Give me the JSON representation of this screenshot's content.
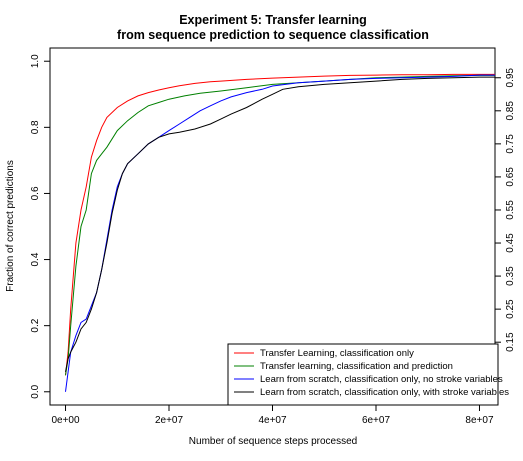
{
  "chart_data": {
    "type": "line",
    "title_line1": "Experiment 5: Transfer learning",
    "title_line2": "from sequence prediction to sequence classification",
    "xlabel": "Number of sequence steps processed",
    "ylabel": "Fraction of correct predictions",
    "xlim": [
      -3000000,
      83000000
    ],
    "ylim": [
      -0.04,
      1.04
    ],
    "grid": false,
    "legend_position": "bottom-right",
    "x_ticks": [
      0,
      20000000,
      40000000,
      60000000,
      80000000
    ],
    "x_tick_labels": [
      "0e+00",
      "2e+07",
      "4e+07",
      "6e+07",
      "8e+07"
    ],
    "y_ticks": [
      0.0,
      0.2,
      0.4,
      0.6,
      0.8,
      1.0
    ],
    "y_tick_labels": [
      "0.0",
      "0.2",
      "0.4",
      "0.6",
      "0.8",
      "1.0"
    ],
    "y2_ticks": [
      0.15,
      0.25,
      0.35,
      0.45,
      0.55,
      0.65,
      0.75,
      0.85,
      0.95
    ],
    "y2_tick_labels": [
      "0.15",
      "0.25",
      "0.35",
      "0.45",
      "0.55",
      "0.65",
      "0.75",
      "0.85",
      "0.95"
    ],
    "series": [
      {
        "name": "Transfer Learning, classification only",
        "color": "#ff0000",
        "points": [
          [
            0,
            0.05
          ],
          [
            500000,
            0.12
          ],
          [
            1000000,
            0.25
          ],
          [
            2000000,
            0.45
          ],
          [
            3000000,
            0.55
          ],
          [
            4000000,
            0.62
          ],
          [
            5000000,
            0.71
          ],
          [
            6000000,
            0.76
          ],
          [
            7000000,
            0.8
          ],
          [
            8000000,
            0.83
          ],
          [
            10000000,
            0.86
          ],
          [
            12000000,
            0.88
          ],
          [
            14000000,
            0.895
          ],
          [
            16000000,
            0.905
          ],
          [
            18000000,
            0.913
          ],
          [
            20000000,
            0.92
          ],
          [
            22000000,
            0.926
          ],
          [
            25000000,
            0.933
          ],
          [
            28000000,
            0.938
          ],
          [
            30000000,
            0.94
          ],
          [
            35000000,
            0.945
          ],
          [
            40000000,
            0.949
          ],
          [
            45000000,
            0.952
          ],
          [
            50000000,
            0.955
          ],
          [
            55000000,
            0.957
          ],
          [
            60000000,
            0.958
          ],
          [
            65000000,
            0.959
          ],
          [
            70000000,
            0.959
          ],
          [
            75000000,
            0.96
          ],
          [
            80000000,
            0.96
          ],
          [
            83000000,
            0.96
          ]
        ]
      },
      {
        "name": "Transfer learning, classification and prediction",
        "color": "#008000",
        "points": [
          [
            0,
            0.05
          ],
          [
            500000,
            0.1
          ],
          [
            1000000,
            0.2
          ],
          [
            2000000,
            0.38
          ],
          [
            3000000,
            0.5
          ],
          [
            4000000,
            0.55
          ],
          [
            5000000,
            0.66
          ],
          [
            6000000,
            0.7
          ],
          [
            7000000,
            0.72
          ],
          [
            8000000,
            0.74
          ],
          [
            10000000,
            0.79
          ],
          [
            12000000,
            0.82
          ],
          [
            14000000,
            0.845
          ],
          [
            16000000,
            0.865
          ],
          [
            18000000,
            0.875
          ],
          [
            20000000,
            0.885
          ],
          [
            23000000,
            0.895
          ],
          [
            26000000,
            0.903
          ],
          [
            30000000,
            0.91
          ],
          [
            35000000,
            0.92
          ],
          [
            40000000,
            0.93
          ],
          [
            45000000,
            0.935
          ],
          [
            50000000,
            0.94
          ],
          [
            55000000,
            0.945
          ],
          [
            60000000,
            0.95
          ],
          [
            65000000,
            0.952
          ],
          [
            70000000,
            0.954
          ],
          [
            75000000,
            0.956
          ],
          [
            80000000,
            0.957
          ],
          [
            83000000,
            0.957
          ]
        ]
      },
      {
        "name": "Learn from scratch, classification only, no stroke variables",
        "color": "#0000ff",
        "points": [
          [
            0,
            0.0
          ],
          [
            500000,
            0.06
          ],
          [
            1000000,
            0.12
          ],
          [
            2000000,
            0.17
          ],
          [
            3000000,
            0.21
          ],
          [
            4000000,
            0.22
          ],
          [
            5000000,
            0.26
          ],
          [
            6000000,
            0.3
          ],
          [
            7000000,
            0.37
          ],
          [
            8000000,
            0.46
          ],
          [
            9000000,
            0.55
          ],
          [
            10000000,
            0.62
          ],
          [
            11000000,
            0.66
          ],
          [
            12000000,
            0.69
          ],
          [
            14000000,
            0.72
          ],
          [
            16000000,
            0.75
          ],
          [
            18000000,
            0.77
          ],
          [
            20000000,
            0.79
          ],
          [
            22000000,
            0.81
          ],
          [
            24000000,
            0.83
          ],
          [
            26000000,
            0.85
          ],
          [
            28000000,
            0.865
          ],
          [
            30000000,
            0.88
          ],
          [
            32000000,
            0.892
          ],
          [
            35000000,
            0.905
          ],
          [
            38000000,
            0.915
          ],
          [
            40000000,
            0.925
          ],
          [
            45000000,
            0.935
          ],
          [
            50000000,
            0.94
          ],
          [
            55000000,
            0.945
          ],
          [
            60000000,
            0.948
          ],
          [
            65000000,
            0.95
          ],
          [
            70000000,
            0.952
          ],
          [
            75000000,
            0.954
          ],
          [
            80000000,
            0.958
          ],
          [
            83000000,
            0.958
          ]
        ]
      },
      {
        "name": "Learn from scratch, classification only, with stroke variables",
        "color": "#000000",
        "points": [
          [
            0,
            0.06
          ],
          [
            500000,
            0.1
          ],
          [
            1000000,
            0.12
          ],
          [
            2000000,
            0.15
          ],
          [
            3000000,
            0.19
          ],
          [
            4000000,
            0.21
          ],
          [
            5000000,
            0.25
          ],
          [
            6000000,
            0.3
          ],
          [
            7000000,
            0.37
          ],
          [
            8000000,
            0.45
          ],
          [
            9000000,
            0.54
          ],
          [
            10000000,
            0.61
          ],
          [
            11000000,
            0.66
          ],
          [
            12000000,
            0.69
          ],
          [
            14000000,
            0.72
          ],
          [
            16000000,
            0.75
          ],
          [
            18000000,
            0.77
          ],
          [
            20000000,
            0.78
          ],
          [
            22000000,
            0.785
          ],
          [
            25000000,
            0.795
          ],
          [
            28000000,
            0.81
          ],
          [
            30000000,
            0.825
          ],
          [
            32000000,
            0.84
          ],
          [
            35000000,
            0.86
          ],
          [
            38000000,
            0.885
          ],
          [
            40000000,
            0.9
          ],
          [
            42000000,
            0.915
          ],
          [
            45000000,
            0.923
          ],
          [
            50000000,
            0.93
          ],
          [
            55000000,
            0.935
          ],
          [
            60000000,
            0.94
          ],
          [
            65000000,
            0.945
          ],
          [
            70000000,
            0.948
          ],
          [
            75000000,
            0.95
          ],
          [
            80000000,
            0.952
          ],
          [
            83000000,
            0.952
          ]
        ]
      }
    ]
  }
}
